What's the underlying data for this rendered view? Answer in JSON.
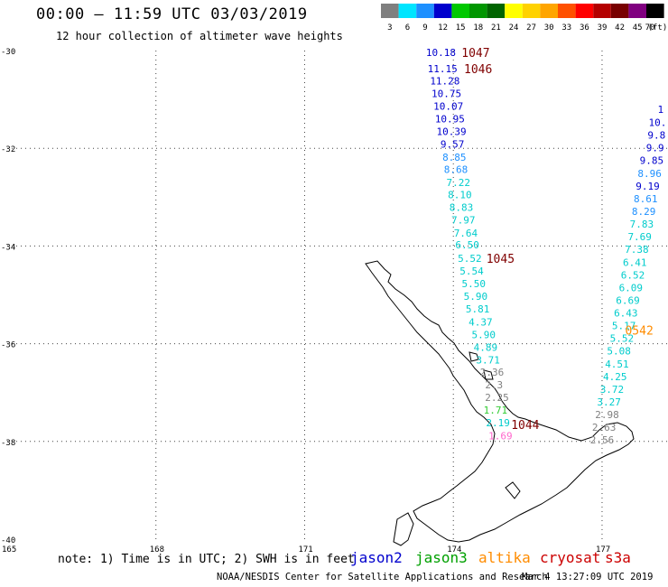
{
  "title": "00:00 – 11:59 UTC 03/03/2019",
  "subtitle": "12 hour collection of altimeter wave heights",
  "legend": {
    "unit": "(ft)",
    "bins": [
      {
        "label": "3",
        "color": "#7f7f7f"
      },
      {
        "label": "6",
        "color": "#00e5ff"
      },
      {
        "label": "9",
        "color": "#1e90ff"
      },
      {
        "label": "12",
        "color": "#0000cd"
      },
      {
        "label": "15",
        "color": "#00c800"
      },
      {
        "label": "18",
        "color": "#009600"
      },
      {
        "label": "21",
        "color": "#006400"
      },
      {
        "label": "24",
        "color": "#ffff00"
      },
      {
        "label": "27",
        "color": "#ffd200"
      },
      {
        "label": "30",
        "color": "#ffa500"
      },
      {
        "label": "33",
        "color": "#ff5000"
      },
      {
        "label": "36",
        "color": "#ff0000"
      },
      {
        "label": "39",
        "color": "#b40000"
      },
      {
        "label": "42",
        "color": "#780000"
      },
      {
        "label": "45",
        "color": "#800080"
      },
      {
        "label": "70",
        "color": "#000000"
      }
    ]
  },
  "axes": {
    "lat_labels": [
      "-30",
      "-32",
      "-34",
      "-36",
      "-38",
      "-40"
    ],
    "lon_labels": [
      "165",
      "168",
      "171",
      "174",
      "177"
    ]
  },
  "tracks": [
    {
      "color_key": "jason2",
      "points": [
        {
          "v": "10.18",
          "lat": -30.04,
          "lon": 173.75,
          "c": "#0000cd"
        },
        {
          "v": "11.15",
          "lat": -30.37,
          "lon": 173.78,
          "c": "#0000cd"
        },
        {
          "v": "11.28",
          "lat": -30.62,
          "lon": 173.83,
          "c": "#0000cd"
        },
        {
          "v": "10.75",
          "lat": -30.88,
          "lon": 173.86,
          "c": "#0000cd"
        },
        {
          "v": "10.07",
          "lat": -31.14,
          "lon": 173.9,
          "c": "#0000cd"
        },
        {
          "v": "10.95",
          "lat": -31.4,
          "lon": 173.93,
          "c": "#0000cd"
        },
        {
          "v": "10.39",
          "lat": -31.65,
          "lon": 173.96,
          "c": "#0000cd"
        },
        {
          "v": "9.57",
          "lat": -31.91,
          "lon": 173.98,
          "c": "#0000cd"
        },
        {
          "v": "8.85",
          "lat": -32.18,
          "lon": 174.02,
          "c": "#1e90ff"
        },
        {
          "v": "8.68",
          "lat": -32.43,
          "lon": 174.05,
          "c": "#1e90ff"
        },
        {
          "v": "7.22",
          "lat": -32.7,
          "lon": 174.1,
          "c": "#00cccc"
        },
        {
          "v": "8.10",
          "lat": -32.95,
          "lon": 174.13,
          "c": "#00cccc"
        },
        {
          "v": "8.83",
          "lat": -33.21,
          "lon": 174.16,
          "c": "#00cccc"
        },
        {
          "v": "7.97",
          "lat": -33.47,
          "lon": 174.2,
          "c": "#00cccc"
        },
        {
          "v": "7.64",
          "lat": -33.73,
          "lon": 174.25,
          "c": "#00cccc"
        },
        {
          "v": "6.50",
          "lat": -33.97,
          "lon": 174.28,
          "c": "#00cccc"
        },
        {
          "v": "5.52",
          "lat": -34.25,
          "lon": 174.33,
          "c": "#00cccc"
        },
        {
          "v": "5.54",
          "lat": -34.51,
          "lon": 174.37,
          "c": "#00cccc"
        },
        {
          "v": "5.50",
          "lat": -34.77,
          "lon": 174.41,
          "c": "#00cccc"
        },
        {
          "v": "5.90",
          "lat": -35.03,
          "lon": 174.45,
          "c": "#00cccc"
        },
        {
          "v": "5.81",
          "lat": -35.29,
          "lon": 174.49,
          "c": "#00cccc"
        },
        {
          "v": "4.37",
          "lat": -35.55,
          "lon": 174.55,
          "c": "#00cccc"
        },
        {
          "v": "5.90",
          "lat": -35.81,
          "lon": 174.61,
          "c": "#00cccc"
        },
        {
          "v": "4.89",
          "lat": -36.07,
          "lon": 174.65,
          "c": "#00cccc"
        },
        {
          "v": "3.71",
          "lat": -36.33,
          "lon": 174.7,
          "c": "#00cccc"
        },
        {
          "v": "2.36",
          "lat": -36.58,
          "lon": 174.78,
          "c": "#808080"
        },
        {
          "v": "2.3",
          "lat": -36.84,
          "lon": 174.82,
          "c": "#808080"
        },
        {
          "v": "2.25",
          "lat": -37.1,
          "lon": 174.88,
          "c": "#808080"
        },
        {
          "v": "1.71",
          "lat": -37.36,
          "lon": 174.85,
          "c": "#33cc33"
        },
        {
          "v": "2.19",
          "lat": -37.62,
          "lon": 174.9,
          "c": "#00cccc"
        },
        {
          "v": "1.69",
          "lat": -37.88,
          "lon": 174.95,
          "c": "#ff66cc"
        }
      ]
    },
    {
      "color_key": "east",
      "points": [
        {
          "v": "1",
          "lat": -31.2,
          "lon": 178.18,
          "c": "#0000cd"
        },
        {
          "v": "10.",
          "lat": -31.47,
          "lon": 178.12,
          "c": "#0000cd"
        },
        {
          "v": "9.8",
          "lat": -31.73,
          "lon": 178.1,
          "c": "#0000cd"
        },
        {
          "v": "9.9",
          "lat": -31.99,
          "lon": 178.07,
          "c": "#0000cd"
        },
        {
          "v": "9.85",
          "lat": -32.25,
          "lon": 178.0,
          "c": "#0000cd"
        },
        {
          "v": "8.96",
          "lat": -32.51,
          "lon": 177.96,
          "c": "#1e90ff"
        },
        {
          "v": "9.19",
          "lat": -32.77,
          "lon": 177.92,
          "c": "#0000cd"
        },
        {
          "v": "8.61",
          "lat": -33.03,
          "lon": 177.88,
          "c": "#1e90ff"
        },
        {
          "v": "8.29",
          "lat": -33.29,
          "lon": 177.84,
          "c": "#1e90ff"
        },
        {
          "v": "7.83",
          "lat": -33.55,
          "lon": 177.8,
          "c": "#00cccc"
        },
        {
          "v": "7.69",
          "lat": -33.81,
          "lon": 177.76,
          "c": "#00cccc"
        },
        {
          "v": "7.38",
          "lat": -34.07,
          "lon": 177.7,
          "c": "#00cccc"
        },
        {
          "v": "6.41",
          "lat": -34.33,
          "lon": 177.66,
          "c": "#00cccc"
        },
        {
          "v": "6.52",
          "lat": -34.59,
          "lon": 177.62,
          "c": "#00cccc"
        },
        {
          "v": "6.09",
          "lat": -34.85,
          "lon": 177.58,
          "c": "#00cccc"
        },
        {
          "v": "6.69",
          "lat": -35.11,
          "lon": 177.52,
          "c": "#00cccc"
        },
        {
          "v": "6.43",
          "lat": -35.37,
          "lon": 177.48,
          "c": "#00cccc"
        },
        {
          "v": "5.17",
          "lat": -35.63,
          "lon": 177.44,
          "c": "#00cccc"
        },
        {
          "v": "5.52",
          "lat": -35.89,
          "lon": 177.4,
          "c": "#00cccc"
        },
        {
          "v": "5.08",
          "lat": -36.15,
          "lon": 177.34,
          "c": "#00cccc"
        },
        {
          "v": "4.51",
          "lat": -36.41,
          "lon": 177.3,
          "c": "#00cccc"
        },
        {
          "v": "4.25",
          "lat": -36.67,
          "lon": 177.26,
          "c": "#00cccc"
        },
        {
          "v": "3.72",
          "lat": -36.93,
          "lon": 177.2,
          "c": "#00cccc"
        },
        {
          "v": "3.27",
          "lat": -37.19,
          "lon": 177.14,
          "c": "#00cccc"
        },
        {
          "v": "2.98",
          "lat": -37.45,
          "lon": 177.1,
          "c": "#808080"
        },
        {
          "v": "2.63",
          "lat": -37.71,
          "lon": 177.04,
          "c": "#808080"
        },
        {
          "v": "2.56",
          "lat": -37.97,
          "lon": 177.0,
          "c": "#808080"
        }
      ]
    }
  ],
  "time_tags": [
    {
      "t": "1047",
      "lat": -30.04,
      "lon": 174.45,
      "c": "#800000"
    },
    {
      "t": "1046",
      "lat": -30.37,
      "lon": 174.5,
      "c": "#800000"
    },
    {
      "t": "1045",
      "lat": -34.25,
      "lon": 174.95,
      "c": "#800000"
    },
    {
      "t": "1044",
      "lat": -37.65,
      "lon": 175.45,
      "c": "#800000"
    },
    {
      "t": "0542",
      "lat": -35.72,
      "lon": 177.75,
      "c": "#ff8c00"
    }
  ],
  "note": "note: 1) Time is in UTC; 2) SWH is in feet",
  "satellites": [
    {
      "name": "jason2",
      "color": "#0000cd"
    },
    {
      "name": "jason3",
      "color": "#00a000"
    },
    {
      "name": "altika",
      "color": "#ff8c00"
    },
    {
      "name": "cryosat",
      "color": "#cc0000"
    },
    {
      "name": "s3a",
      "color": "#cc0000"
    }
  ],
  "credit": "NOAA/NESDIS Center for Satellite Applications and Research",
  "timestamp": "Mar  4 13:27:09 UTC 2019"
}
